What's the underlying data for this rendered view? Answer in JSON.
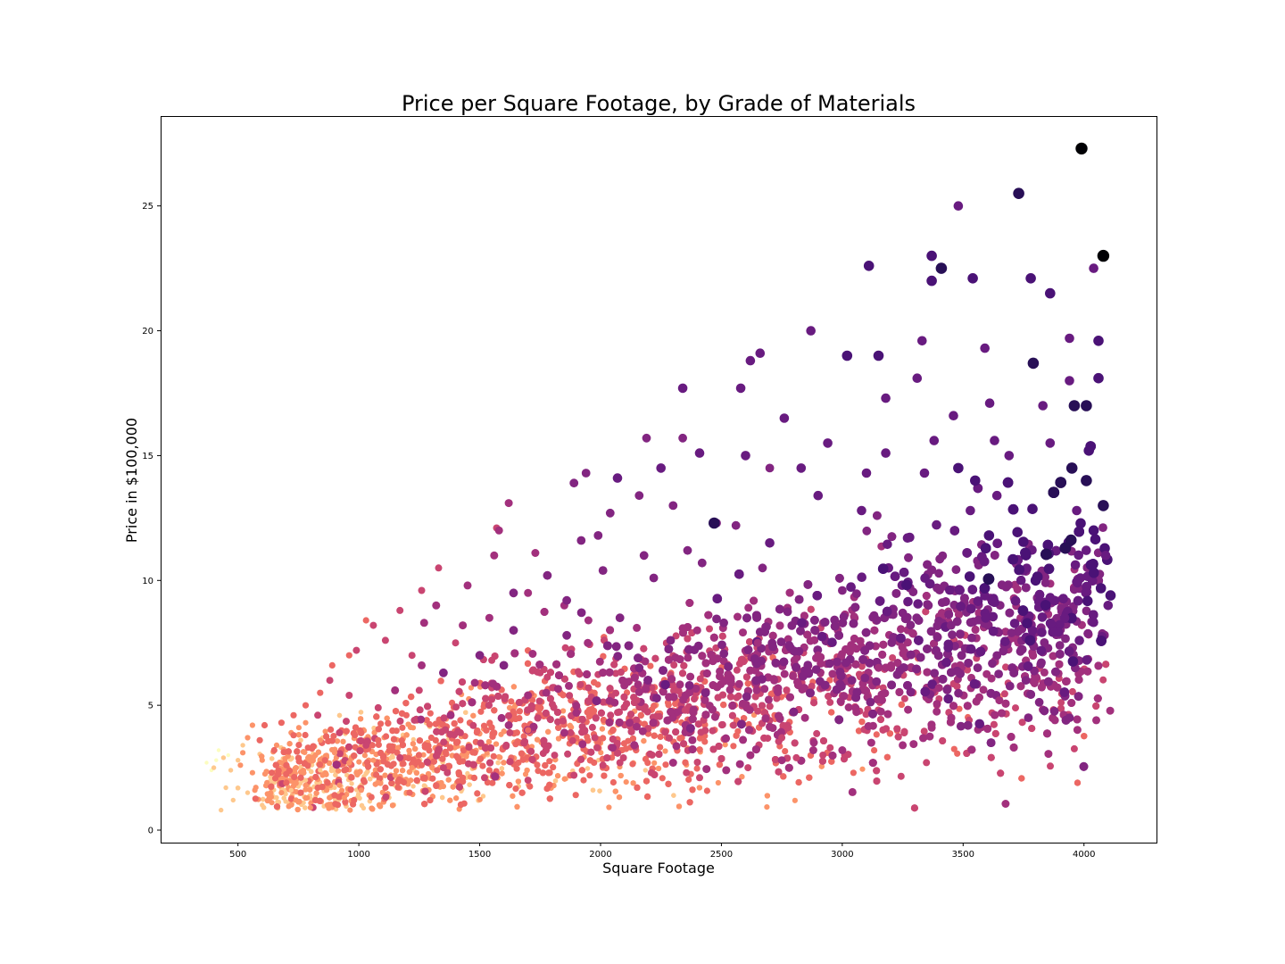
{
  "chart_data": {
    "type": "scatter",
    "title": "Price per Square Footage, by Grade of Materials",
    "xlabel": "Square Footage",
    "ylabel": "Price in $100,000",
    "xlim": [
      180,
      4300
    ],
    "ylim": [
      -0.5,
      28.6
    ],
    "x_ticks": [
      500,
      1000,
      1500,
      2000,
      2500,
      3000,
      3500,
      4000
    ],
    "y_ticks": [
      0,
      5,
      10,
      15,
      20,
      25
    ],
    "grid": false,
    "legend": "none",
    "colormap": [
      "#fcfdbf",
      "#fec287",
      "#fb8761",
      "#e55964",
      "#b73779",
      "#8c2981",
      "#721f81",
      "#51127c",
      "#2c115f",
      "#000004"
    ],
    "marker_size_encodes": "grade",
    "color_encodes": "grade",
    "grades": [
      3,
      4,
      5,
      6,
      7,
      8,
      9,
      10,
      11,
      12,
      13
    ],
    "series_points_grade_13": [
      [
        3990,
        27.3
      ],
      [
        4080,
        23.0
      ]
    ],
    "series_points_grade_12": [
      [
        3730,
        25.5
      ],
      [
        3410,
        22.5
      ],
      [
        3960,
        17.0
      ],
      [
        4010,
        17.0
      ],
      [
        4010,
        14.0
      ],
      [
        2470,
        12.3
      ],
      [
        4080,
        13.0
      ],
      [
        3790,
        18.7
      ],
      [
        3950,
        14.5
      ]
    ],
    "series_points_grade_11": [
      [
        3110,
        22.6
      ],
      [
        3370,
        23.0
      ],
      [
        3540,
        22.1
      ],
      [
        3780,
        22.1
      ],
      [
        3860,
        21.5
      ],
      [
        4060,
        19.6
      ],
      [
        3020,
        19.0
      ],
      [
        3150,
        19.0
      ],
      [
        4060,
        18.1
      ],
      [
        3480,
        14.5
      ],
      [
        3370,
        22.0
      ],
      [
        4020,
        15.2
      ],
      [
        4040,
        12.0
      ],
      [
        3550,
        14.0
      ],
      [
        3800,
        10.0
      ],
      [
        4110,
        9.4
      ]
    ],
    "series_points_grade_10": [
      [
        3480,
        25.0
      ],
      [
        4040,
        22.5
      ],
      [
        2870,
        20.0
      ],
      [
        3330,
        19.6
      ],
      [
        3590,
        19.3
      ],
      [
        2660,
        19.1
      ],
      [
        2620,
        18.8
      ],
      [
        3940,
        19.7
      ],
      [
        3310,
        18.1
      ],
      [
        3830,
        17.0
      ],
      [
        3180,
        17.3
      ],
      [
        2580,
        17.7
      ],
      [
        2340,
        17.7
      ],
      [
        3610,
        17.1
      ],
      [
        3940,
        18.0
      ],
      [
        3460,
        16.6
      ],
      [
        3860,
        15.5
      ],
      [
        3630,
        15.6
      ],
      [
        3180,
        15.1
      ],
      [
        3380,
        15.6
      ],
      [
        2760,
        16.5
      ],
      [
        2940,
        15.5
      ],
      [
        2410,
        15.1
      ],
      [
        2070,
        14.1
      ],
      [
        2600,
        15.0
      ],
      [
        2250,
        14.5
      ],
      [
        3340,
        14.3
      ],
      [
        3690,
        15.0
      ],
      [
        2830,
        14.5
      ],
      [
        3100,
        14.3
      ],
      [
        4090,
        11.0
      ],
      [
        3640,
        13.4
      ],
      [
        3080,
        12.8
      ],
      [
        2900,
        13.4
      ],
      [
        3970,
        12.8
      ],
      [
        3530,
        12.8
      ],
      [
        4100,
        9.0
      ],
      [
        3920,
        8.5
      ],
      [
        2700,
        11.5
      ],
      [
        3270,
        11.7
      ]
    ],
    "series_points_grade_9": [
      [
        2190,
        15.7
      ],
      [
        2340,
        15.7
      ],
      [
        1940,
        14.3
      ],
      [
        2700,
        14.5
      ],
      [
        2300,
        13.0
      ],
      [
        1890,
        13.9
      ],
      [
        2040,
        12.7
      ],
      [
        2160,
        13.4
      ],
      [
        2480,
        12.3
      ],
      [
        1990,
        11.8
      ],
      [
        2560,
        12.2
      ],
      [
        2180,
        11.0
      ],
      [
        1920,
        11.6
      ],
      [
        2360,
        11.2
      ],
      [
        1780,
        10.2
      ],
      [
        2010,
        10.4
      ],
      [
        1640,
        9.5
      ],
      [
        2420,
        10.7
      ],
      [
        2220,
        10.1
      ],
      [
        1860,
        9.2
      ],
      [
        2670,
        10.5
      ],
      [
        3000,
        9.6
      ],
      [
        3250,
        8.7
      ],
      [
        3450,
        8.2
      ],
      [
        3700,
        7.9
      ],
      [
        3900,
        7.4
      ],
      [
        3560,
        6.5
      ],
      [
        3760,
        6.0
      ],
      [
        3940,
        4.5
      ],
      [
        3770,
        4.5
      ],
      [
        3040,
        6.0
      ],
      [
        2780,
        7.4
      ],
      [
        2510,
        8.3
      ],
      [
        2290,
        7.6
      ],
      [
        2080,
        8.5
      ],
      [
        1860,
        7.8
      ],
      [
        1640,
        8.0
      ],
      [
        1500,
        7.0
      ],
      [
        1350,
        6.3
      ],
      [
        1600,
        6.6
      ]
    ],
    "series_points_grade_8": [
      [
        1620,
        13.1
      ],
      [
        1580,
        12.0
      ],
      [
        1560,
        11.0
      ],
      [
        1730,
        11.1
      ],
      [
        1450,
        9.8
      ],
      [
        1320,
        9.0
      ],
      [
        1700,
        9.5
      ],
      [
        1850,
        9.0
      ],
      [
        1430,
        8.2
      ],
      [
        1270,
        8.3
      ],
      [
        1540,
        8.5
      ],
      [
        1950,
        8.4
      ],
      [
        2150,
        8.1
      ],
      [
        2400,
        8.0
      ],
      [
        2650,
        7.5
      ],
      [
        2900,
        7.0
      ],
      [
        3150,
        6.5
      ],
      [
        3400,
        5.7
      ],
      [
        3650,
        5.2
      ],
      [
        3880,
        4.4
      ],
      [
        3370,
        4.1
      ],
      [
        3120,
        3.5
      ],
      [
        2880,
        3.2
      ],
      [
        2620,
        3.0
      ],
      [
        2380,
        3.6
      ],
      [
        2120,
        4.3
      ],
      [
        1900,
        4.7
      ],
      [
        1700,
        5.4
      ],
      [
        1480,
        5.9
      ],
      [
        1260,
        6.6
      ],
      [
        1150,
        5.6
      ],
      [
        1380,
        4.6
      ],
      [
        1620,
        4.2
      ],
      [
        1850,
        3.9
      ],
      [
        2050,
        3.3
      ],
      [
        2300,
        2.7
      ],
      [
        2520,
        2.4
      ],
      [
        2750,
        2.8
      ],
      [
        3000,
        3.2
      ],
      [
        3250,
        3.4
      ]
    ],
    "series_points_grade_7": [
      [
        1330,
        10.5
      ],
      [
        1570,
        12.1
      ],
      [
        1260,
        9.6
      ],
      [
        1170,
        8.8
      ],
      [
        1060,
        8.2
      ],
      [
        990,
        7.2
      ],
      [
        1110,
        7.6
      ],
      [
        1220,
        7.0
      ],
      [
        1400,
        7.5
      ],
      [
        1550,
        6.8
      ],
      [
        1750,
        6.3
      ],
      [
        1950,
        5.7
      ],
      [
        2150,
        5.2
      ],
      [
        2350,
        4.8
      ],
      [
        2550,
        4.2
      ],
      [
        2750,
        3.7
      ],
      [
        2950,
        3.3
      ],
      [
        880,
        6.0
      ],
      [
        960,
        5.4
      ],
      [
        1080,
        4.9
      ],
      [
        1230,
        4.4
      ],
      [
        1420,
        3.9
      ],
      [
        1610,
        3.4
      ],
      [
        1810,
        3.0
      ],
      [
        2010,
        2.6
      ],
      [
        2210,
        2.3
      ],
      [
        2410,
        2.1
      ],
      [
        2610,
        2.5
      ],
      [
        2810,
        2.9
      ],
      [
        3010,
        3.0
      ],
      [
        830,
        4.6
      ],
      [
        920,
        3.9
      ],
      [
        1030,
        3.4
      ],
      [
        1170,
        2.9
      ],
      [
        1350,
        2.5
      ],
      [
        1520,
        2.1
      ],
      [
        1700,
        2.0
      ],
      [
        1890,
        2.2
      ],
      [
        2080,
        2.7
      ],
      [
        1250,
        5.6
      ]
    ],
    "series_points_grade_6": [
      [
        1030,
        8.4
      ],
      [
        960,
        7.0
      ],
      [
        890,
        6.6
      ],
      [
        840,
        5.5
      ],
      [
        780,
        5.0
      ],
      [
        730,
        4.6
      ],
      [
        680,
        4.3
      ],
      [
        730,
        3.8
      ],
      [
        790,
        3.3
      ],
      [
        860,
        2.8
      ],
      [
        940,
        2.4
      ],
      [
        1020,
        2.0
      ],
      [
        1110,
        1.7
      ],
      [
        1210,
        1.5
      ],
      [
        1320,
        1.8
      ],
      [
        1430,
        2.1
      ],
      [
        1540,
        2.4
      ],
      [
        1660,
        2.7
      ],
      [
        1790,
        2.3
      ],
      [
        1930,
        2.0
      ],
      [
        650,
        3.2
      ],
      [
        700,
        2.6
      ],
      [
        760,
        2.1
      ],
      [
        830,
        1.7
      ],
      [
        900,
        1.4
      ],
      [
        980,
        1.2
      ],
      [
        1080,
        3.6
      ],
      [
        1180,
        4.1
      ],
      [
        1300,
        3.7
      ],
      [
        1420,
        4.4
      ],
      [
        1560,
        3.9
      ],
      [
        1700,
        4.0
      ],
      [
        610,
        4.2
      ],
      [
        590,
        3.6
      ],
      [
        640,
        2.3
      ],
      [
        700,
        1.9
      ],
      [
        760,
        1.5
      ],
      [
        820,
        1.2
      ],
      [
        1260,
        2.6
      ],
      [
        1480,
        3.1
      ]
    ],
    "series_points_grade_5": [
      [
        560,
        4.2
      ],
      [
        540,
        3.7
      ],
      [
        520,
        3.1
      ],
      [
        510,
        2.6
      ],
      [
        560,
        2.3
      ],
      [
        620,
        1.9
      ],
      [
        680,
        1.5
      ],
      [
        740,
        1.2
      ],
      [
        800,
        0.9
      ],
      [
        870,
        1.0
      ],
      [
        940,
        1.3
      ],
      [
        1010,
        1.6
      ],
      [
        1080,
        1.9
      ],
      [
        1150,
        2.2
      ],
      [
        1220,
        2.5
      ],
      [
        660,
        3.4
      ],
      [
        720,
        3.9
      ],
      [
        780,
        4.3
      ],
      [
        840,
        3.6
      ],
      [
        900,
        3.1
      ],
      [
        960,
        2.7
      ],
      [
        600,
        2.8
      ],
      [
        570,
        1.6
      ],
      [
        640,
        1.1
      ],
      [
        710,
        0.95
      ],
      [
        780,
        1.8
      ],
      [
        850,
        2.2
      ],
      [
        920,
        1.8
      ],
      [
        990,
        2.3
      ],
      [
        1060,
        2.8
      ]
    ],
    "series_points_grade_4": [
      [
        520,
        3.4
      ],
      [
        500,
        2.8
      ],
      [
        470,
        2.4
      ],
      [
        450,
        1.7
      ],
      [
        480,
        1.2
      ],
      [
        430,
        0.8
      ],
      [
        400,
        2.5
      ],
      [
        440,
        2.9
      ],
      [
        540,
        1.5
      ],
      [
        600,
        1.0
      ],
      [
        660,
        1.3
      ],
      [
        720,
        1.6
      ],
      [
        780,
        2.0
      ],
      [
        840,
        2.4
      ]
    ],
    "series_points_grade_3": [
      [
        370,
        2.7
      ],
      [
        390,
        2.4
      ],
      [
        420,
        3.2
      ],
      [
        460,
        3.0
      ],
      [
        410,
        2.8
      ]
    ]
  }
}
